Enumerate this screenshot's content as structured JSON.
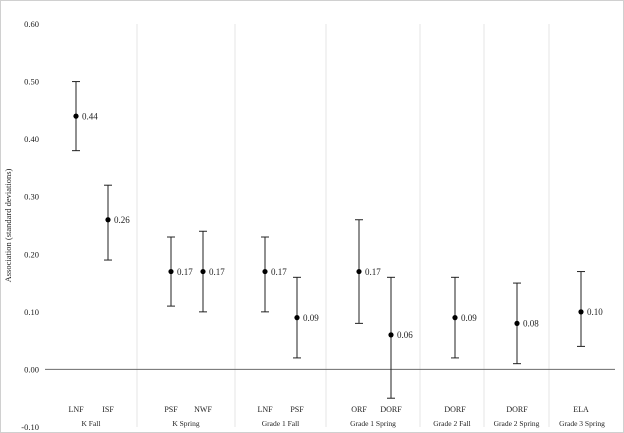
{
  "chart_data": {
    "type": "scatter",
    "subtype": "point-estimate-with-error-bars",
    "title": "",
    "xlabel": "",
    "ylabel": "Association (standard deviations)",
    "ylim": [
      -0.1,
      0.6
    ],
    "yticks": [
      -0.1,
      0.0,
      0.1,
      0.2,
      0.3,
      0.4,
      0.5,
      0.6
    ],
    "yticklabels": [
      "-0.10",
      "0.00",
      "0.10",
      "0.20",
      "0.30",
      "0.40",
      "0.50",
      "0.60"
    ],
    "grid": false,
    "zero_line": true,
    "groups": [
      {
        "name": "K Fall",
        "points": [
          {
            "measure": "LNF",
            "value": 0.44,
            "label": "0.44",
            "ci": [
              0.38,
              0.5
            ]
          },
          {
            "measure": "ISF",
            "value": 0.26,
            "label": "0.26",
            "ci": [
              0.19,
              0.32
            ]
          }
        ]
      },
      {
        "name": "K Spring",
        "points": [
          {
            "measure": "PSF",
            "value": 0.17,
            "label": "0.17",
            "ci": [
              0.11,
              0.23
            ]
          },
          {
            "measure": "NWF",
            "value": 0.17,
            "label": "0.17",
            "ci": [
              0.1,
              0.24
            ]
          }
        ]
      },
      {
        "name": "Grade 1 Fall",
        "points": [
          {
            "measure": "LNF",
            "value": 0.17,
            "label": "0.17",
            "ci": [
              0.1,
              0.23
            ]
          },
          {
            "measure": "PSF",
            "value": 0.09,
            "label": "0.09",
            "ci": [
              0.02,
              0.16
            ]
          }
        ]
      },
      {
        "name": "Grade 1 Spring",
        "points": [
          {
            "measure": "ORF",
            "value": 0.17,
            "label": "0.17",
            "ci": [
              0.08,
              0.26
            ]
          },
          {
            "measure": "DORF",
            "value": 0.06,
            "label": "0.06",
            "ci": [
              -0.05,
              0.16
            ]
          }
        ]
      },
      {
        "name": "Grade 2 Fall",
        "points": [
          {
            "measure": "DORF",
            "value": 0.09,
            "label": "0.09",
            "ci": [
              0.02,
              0.16
            ]
          }
        ]
      },
      {
        "name": "Grade 2 Spring",
        "points": [
          {
            "measure": "DORF",
            "value": 0.08,
            "label": "0.08",
            "ci": [
              0.01,
              0.15
            ]
          }
        ]
      },
      {
        "name": "Grade 3 Spring",
        "points": [
          {
            "measure": "ELA",
            "value": 0.1,
            "label": "0.10",
            "ci": [
              0.04,
              0.17
            ]
          }
        ]
      }
    ]
  }
}
